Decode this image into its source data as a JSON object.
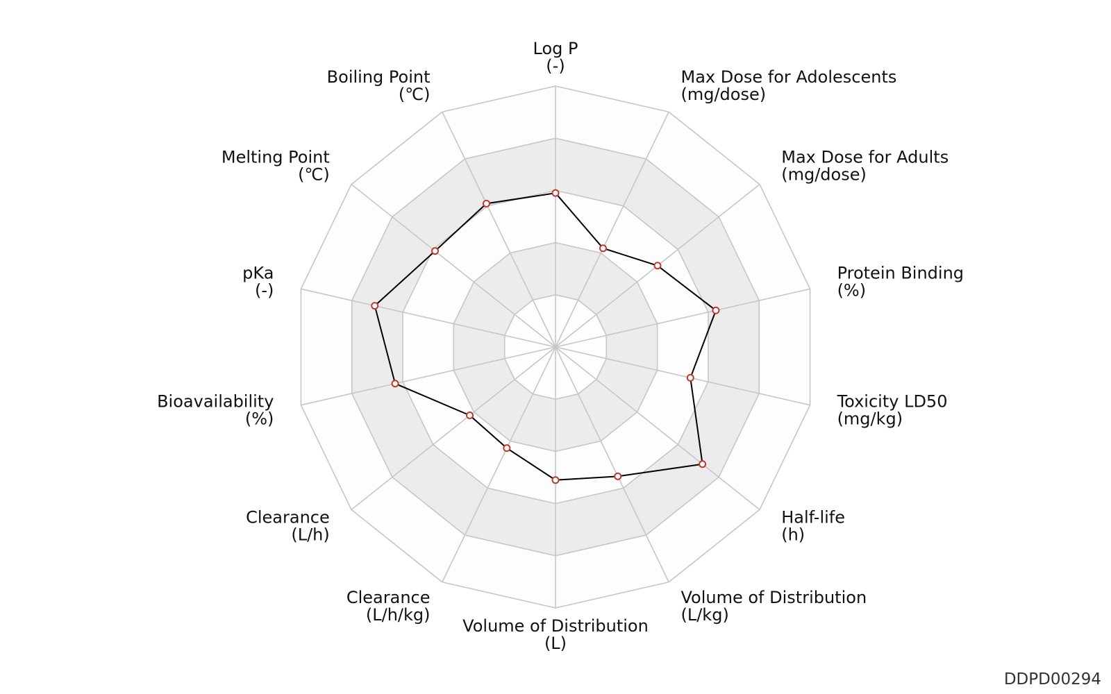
{
  "chart_data": {
    "type": "radar",
    "axes": [
      {
        "name": "Log P",
        "unit": "(-)"
      },
      {
        "name": "Max Dose for Adolescents",
        "unit": "(mg/dose)"
      },
      {
        "name": "Max Dose for Adults",
        "unit": "(mg/dose)"
      },
      {
        "name": "Protein Binding",
        "unit": "(%)"
      },
      {
        "name": "Toxicity LD50",
        "unit": "(mg/kg)"
      },
      {
        "name": "Half-life",
        "unit": "(h)"
      },
      {
        "name": "Volume of Distribution",
        "unit": "(L/kg)"
      },
      {
        "name": "Volume of Distribution",
        "unit": "(L)"
      },
      {
        "name": "Clearance",
        "unit": "(L/h/kg)"
      },
      {
        "name": "Clearance",
        "unit": "(L/h)"
      },
      {
        "name": "Bioavailability",
        "unit": "(%)"
      },
      {
        "name": "pKa",
        "unit": "(-)"
      },
      {
        "name": "Melting Point",
        "unit": "(℃)"
      },
      {
        "name": "Boiling Point",
        "unit": "(℃)"
      }
    ],
    "range": [
      0,
      1
    ],
    "rings": 5,
    "series": [
      {
        "values": [
          0.59,
          0.42,
          0.5,
          0.63,
          0.53,
          0.72,
          0.55,
          0.51,
          0.43,
          0.42,
          0.63,
          0.71,
          0.59,
          0.61
        ]
      }
    ],
    "colors": {
      "line": "#000000",
      "marker_edge": "#c0392b",
      "ring_shade": "#ececec",
      "grid": "#c6c6c6"
    }
  },
  "watermark": "DDPD00294"
}
